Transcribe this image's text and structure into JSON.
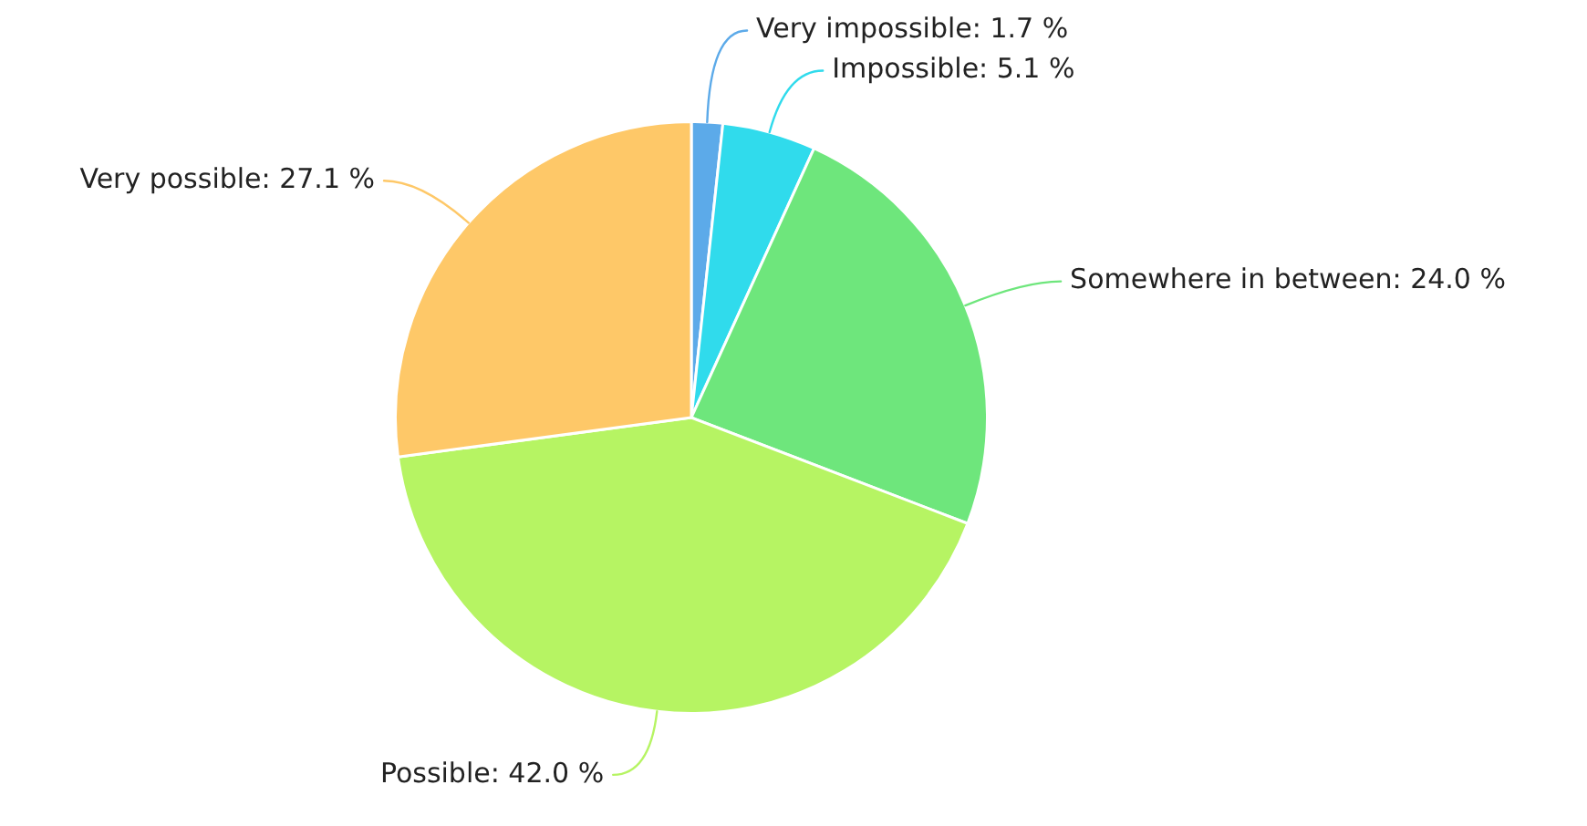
{
  "chart_data": {
    "type": "pie",
    "categories": [
      "Very impossible",
      "Impossible",
      "Somewhere in between",
      "Possible",
      "Very possible"
    ],
    "values": [
      1.7,
      5.1,
      24.0,
      42.0,
      27.1
    ],
    "colors": [
      "#5caae9",
      "#30dbec",
      "#6ee67c",
      "#b6f463",
      "#fec868"
    ],
    "value_labels": [
      "1.7 %",
      "5.1 %",
      "24.0 %",
      "42.0 %",
      "27.1 %"
    ]
  }
}
